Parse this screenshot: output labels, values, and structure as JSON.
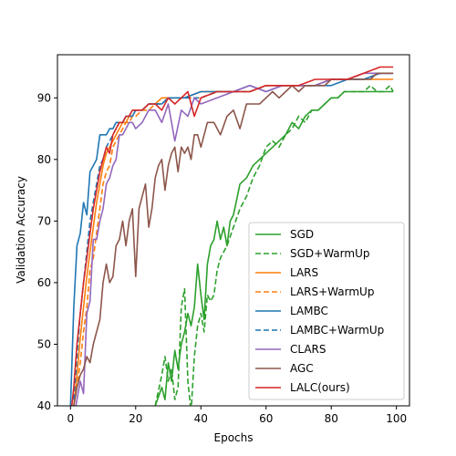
{
  "chart_data": {
    "type": "line",
    "title": "",
    "xlabel": "Epochs",
    "ylabel": "Validation Accuracy",
    "xlim": [
      -4,
      104
    ],
    "ylim": [
      40,
      97
    ],
    "xticks": [
      0,
      20,
      40,
      60,
      80,
      100
    ],
    "yticks": [
      40,
      50,
      60,
      70,
      80,
      90
    ],
    "grid": false,
    "legend_position": "lower-right",
    "colors": {
      "SGD": "#2ca02c",
      "LARS": "#ff7f0e",
      "LAMBC": "#1f77b4",
      "CLARS": "#9467bd",
      "AGC": "#8c564b",
      "LALC": "#d62728"
    },
    "series": [
      {
        "name": "SGD",
        "color": "#2ca02c",
        "dashed": false,
        "x": [
          24,
          26,
          28,
          29,
          30,
          31,
          32,
          33,
          34,
          35,
          36,
          37,
          38,
          39,
          40,
          41,
          42,
          43,
          44,
          45,
          46,
          47,
          48,
          49,
          50,
          52,
          54,
          56,
          58,
          60,
          62,
          64,
          66,
          68,
          70,
          72,
          74,
          76,
          78,
          80,
          82,
          84,
          86,
          88,
          90,
          92,
          94,
          96,
          98,
          99
        ],
        "y": [
          39,
          40,
          43,
          41,
          47,
          44,
          49,
          46,
          50,
          52,
          55,
          53,
          56,
          63,
          58,
          54,
          63,
          66,
          67,
          70,
          67,
          69,
          66,
          70,
          71,
          76,
          77,
          79,
          80,
          81,
          82,
          83,
          84,
          86,
          85,
          87,
          88,
          88,
          89,
          90,
          90,
          91,
          91,
          91,
          91,
          91,
          91,
          91,
          91,
          91
        ]
      },
      {
        "name": "SGD+WarmUp",
        "color": "#2ca02c",
        "dashed": true,
        "x": [
          26,
          28,
          29,
          30,
          31,
          32,
          33,
          34,
          35,
          36,
          37,
          38,
          39,
          40,
          41,
          42,
          43,
          44,
          45,
          46,
          48,
          50,
          52,
          54,
          56,
          58,
          60,
          62,
          64,
          66,
          68,
          70,
          72,
          74,
          76,
          78,
          80,
          82,
          84,
          86,
          88,
          90,
          92,
          94,
          96,
          98,
          99
        ],
        "y": [
          40,
          45,
          48,
          44,
          46,
          41,
          43,
          56,
          59,
          44,
          39,
          48,
          53,
          55,
          52,
          58,
          57,
          58,
          62,
          64,
          66,
          69,
          72,
          74,
          77,
          79,
          82,
          83,
          82,
          84,
          85,
          87,
          86,
          88,
          88,
          89,
          90,
          90,
          91,
          91,
          91,
          91,
          92,
          91,
          91,
          92,
          91
        ]
      },
      {
        "name": "LARS",
        "color": "#ff7f0e",
        "dashed": false,
        "x": [
          1,
          2,
          3,
          4,
          5,
          6,
          7,
          8,
          9,
          10,
          11,
          12,
          13,
          14,
          15,
          16,
          17,
          18,
          19,
          20,
          22,
          24,
          26,
          28,
          30,
          35,
          40,
          45,
          50,
          55,
          60,
          65,
          70,
          75,
          80,
          85,
          90,
          95,
          99
        ],
        "y": [
          40,
          45,
          51,
          56,
          61,
          65,
          69,
          73,
          76,
          79,
          81,
          82,
          83,
          84,
          85,
          86,
          86,
          87,
          87,
          88,
          88,
          89,
          89,
          90,
          90,
          90,
          91,
          91,
          91,
          91,
          92,
          92,
          92,
          92,
          93,
          93,
          93,
          93,
          93
        ]
      },
      {
        "name": "LARS+WarmUp",
        "color": "#ff7f0e",
        "dashed": true,
        "x": [
          1,
          2,
          3,
          4,
          5,
          6,
          7,
          8,
          9,
          10,
          11,
          12,
          13,
          14,
          15,
          16,
          17,
          18,
          19,
          20,
          22,
          24,
          26,
          28,
          30,
          35,
          40,
          45,
          50,
          55,
          60,
          65,
          70,
          75,
          80,
          85,
          90,
          95,
          99
        ],
        "y": [
          40,
          43,
          47,
          52,
          56,
          62,
          64,
          68,
          72,
          76,
          78,
          79,
          82,
          83,
          84,
          85,
          86,
          86,
          87,
          87,
          88,
          88,
          89,
          89,
          90,
          90,
          90,
          91,
          91,
          91,
          92,
          92,
          92,
          92,
          93,
          93,
          94,
          94,
          94
        ]
      },
      {
        "name": "LAMBC",
        "color": "#1f77b4",
        "dashed": false,
        "x": [
          0,
          1,
          2,
          3,
          4,
          5,
          6,
          7,
          8,
          9,
          10,
          11,
          12,
          13,
          14,
          15,
          16,
          17,
          18,
          19,
          20,
          22,
          24,
          26,
          28,
          30,
          35,
          40,
          45,
          50,
          55,
          60,
          65,
          70,
          75,
          80,
          85,
          90,
          95,
          99
        ],
        "y": [
          40,
          56,
          66,
          68,
          73,
          71,
          78,
          79,
          80,
          84,
          84,
          84,
          85,
          85,
          86,
          86,
          86,
          87,
          87,
          87,
          88,
          88,
          89,
          89,
          89,
          90,
          90,
          91,
          91,
          91,
          92,
          91,
          92,
          92,
          92,
          92,
          93,
          93,
          94,
          94
        ]
      },
      {
        "name": "LAMBC+WarmUp",
        "color": "#1f77b4",
        "dashed": true,
        "x": [
          1,
          2,
          3,
          4,
          5,
          6,
          7,
          8,
          9,
          10,
          11,
          12,
          13,
          14,
          15,
          16,
          17,
          18,
          19,
          20,
          22,
          24,
          26,
          28,
          30,
          35,
          40,
          45,
          50,
          55,
          60,
          65,
          70,
          75,
          80,
          85,
          90,
          95,
          99
        ],
        "y": [
          41,
          48,
          55,
          60,
          65,
          70,
          73,
          76,
          79,
          80,
          82,
          83,
          84,
          85,
          86,
          86,
          87,
          87,
          88,
          88,
          88,
          89,
          89,
          89,
          90,
          90,
          90,
          91,
          91,
          91,
          92,
          92,
          92,
          92,
          93,
          93,
          93,
          94,
          94
        ]
      },
      {
        "name": "CLARS",
        "color": "#9467bd",
        "dashed": false,
        "x": [
          1,
          2,
          3,
          4,
          5,
          6,
          7,
          8,
          9,
          10,
          11,
          12,
          13,
          14,
          15,
          16,
          17,
          18,
          19,
          20,
          22,
          24,
          26,
          28,
          30,
          32,
          34,
          36,
          38,
          40,
          45,
          50,
          55,
          60,
          65,
          70,
          75,
          80,
          85,
          90,
          95,
          99
        ],
        "y": [
          38,
          41,
          44,
          42,
          55,
          57,
          67,
          67,
          70,
          72,
          76,
          77,
          79,
          80,
          84,
          84,
          85,
          86,
          86,
          85,
          86,
          88,
          88,
          86,
          89,
          83,
          88,
          87,
          90,
          89,
          90,
          91,
          92,
          91,
          92,
          92,
          92,
          93,
          93,
          94,
          94,
          94
        ]
      },
      {
        "name": "AGC",
        "color": "#8c564b",
        "dashed": false,
        "x": [
          1,
          2,
          3,
          4,
          5,
          6,
          7,
          8,
          9,
          10,
          11,
          12,
          13,
          14,
          15,
          16,
          17,
          18,
          19,
          20,
          21,
          22,
          23,
          24,
          25,
          26,
          27,
          28,
          29,
          30,
          31,
          32,
          33,
          34,
          35,
          36,
          37,
          38,
          39,
          40,
          42,
          44,
          46,
          48,
          50,
          52,
          54,
          56,
          58,
          60,
          62,
          64,
          66,
          68,
          70,
          72,
          74,
          76,
          78,
          80,
          82,
          84,
          86,
          88,
          90,
          92,
          94,
          96,
          98,
          99
        ],
        "y": [
          40,
          43,
          45,
          46,
          48,
          47,
          50,
          52,
          54,
          60,
          63,
          60,
          61,
          66,
          67,
          70,
          66,
          70,
          72,
          61,
          72,
          74,
          76,
          69,
          72,
          77,
          79,
          80,
          75,
          79,
          81,
          82,
          78,
          82,
          81,
          82,
          80,
          84,
          84,
          82,
          86,
          86,
          84,
          87,
          88,
          85,
          89,
          89,
          89,
          90,
          91,
          90,
          91,
          92,
          91,
          92,
          92,
          92,
          92,
          93,
          93,
          93,
          93,
          93,
          93,
          93,
          94,
          94,
          94,
          94
        ]
      },
      {
        "name": "LALC(ours)",
        "color": "#d62728",
        "dashed": false,
        "x": [
          0,
          1,
          2,
          3,
          4,
          5,
          6,
          7,
          8,
          9,
          10,
          11,
          12,
          13,
          14,
          15,
          16,
          17,
          18,
          19,
          20,
          22,
          24,
          26,
          28,
          30,
          32,
          34,
          36,
          38,
          40,
          45,
          50,
          55,
          60,
          65,
          70,
          75,
          80,
          85,
          90,
          95,
          99
        ],
        "y": [
          38,
          43,
          50,
          55,
          60,
          64,
          68,
          72,
          75,
          78,
          80,
          82,
          81,
          84,
          85,
          86,
          86,
          87,
          87,
          88,
          88,
          88,
          89,
          89,
          88,
          90,
          89,
          90,
          91,
          87,
          90,
          91,
          91,
          91,
          92,
          92,
          92,
          93,
          93,
          93,
          94,
          95,
          95
        ]
      }
    ]
  }
}
